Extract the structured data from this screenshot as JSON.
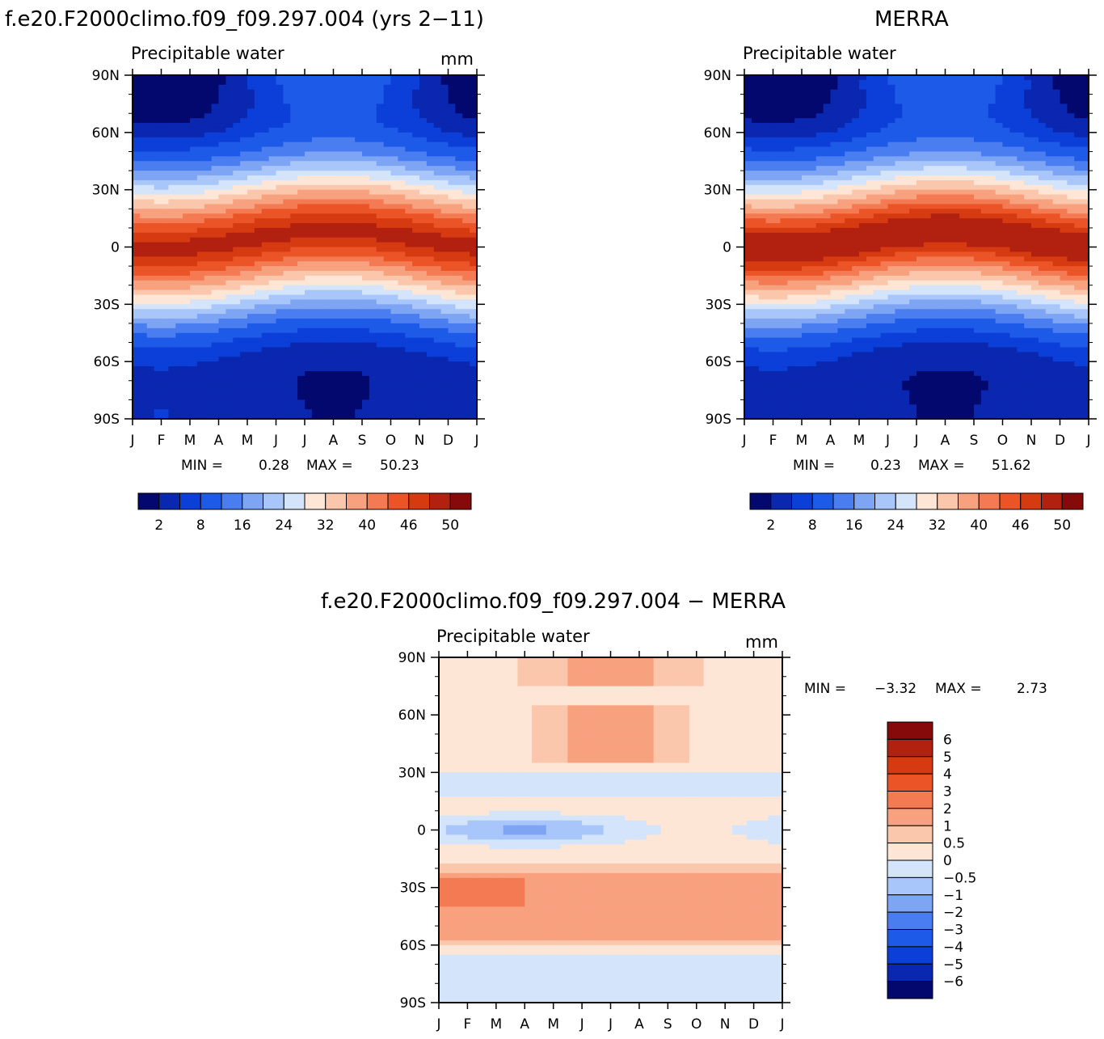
{
  "chart_data": [
    {
      "type": "heatmap",
      "title": "f.e20.F2000climo.f09_f09.297.004 (yrs 2−11)",
      "subtitle": "Precipitable water",
      "units": "mm",
      "x_ticks": [
        "J",
        "F",
        "M",
        "A",
        "M",
        "J",
        "J",
        "A",
        "S",
        "O",
        "N",
        "D",
        "J"
      ],
      "y_ticks": [
        "90N",
        "60N",
        "30N",
        "0",
        "30S",
        "60S",
        "90S"
      ],
      "minmax": {
        "min_label": "MIN =",
        "min": "0.28",
        "max_label": "MAX =",
        "max": "50.23"
      },
      "colorbar": {
        "labels": [
          "2",
          "8",
          "16",
          "24",
          "32",
          "40",
          "46",
          "50"
        ],
        "colors": [
          "#02086e",
          "#0a27b0",
          "#0b3fd8",
          "#1e5ae8",
          "#4a7ef0",
          "#7ea4f4",
          "#a9c6fa",
          "#d3e4fb",
          "#fde6d6",
          "#fbc7ac",
          "#f8a17f",
          "#f37a52",
          "#ea5426",
          "#d63a11",
          "#b22010",
          "#850a09"
        ]
      },
      "climatology": {
        "peak": 50.23,
        "peak_month": 8,
        "peak_lat": 10,
        "trough": 0.28
      }
    },
    {
      "type": "heatmap",
      "title": "MERRA",
      "subtitle": "Precipitable water",
      "units": "",
      "x_ticks": [
        "J",
        "F",
        "M",
        "A",
        "M",
        "J",
        "J",
        "A",
        "S",
        "O",
        "N",
        "D",
        "J"
      ],
      "y_ticks": [
        "90N",
        "60N",
        "30N",
        "0",
        "30S",
        "60S",
        "90S"
      ],
      "minmax": {
        "min_label": "MIN =",
        "min": "0.23",
        "max_label": "MAX =",
        "max": "51.62"
      },
      "colorbar": {
        "labels": [
          "2",
          "8",
          "16",
          "24",
          "32",
          "40",
          "46",
          "50"
        ],
        "colors": [
          "#02086e",
          "#0a27b0",
          "#0b3fd8",
          "#1e5ae8",
          "#4a7ef0",
          "#7ea4f4",
          "#a9c6fa",
          "#d3e4fb",
          "#fde6d6",
          "#fbc7ac",
          "#f8a17f",
          "#f37a52",
          "#ea5426",
          "#d63a11",
          "#b22010",
          "#850a09"
        ]
      },
      "climatology": {
        "peak": 51.62,
        "peak_month": 8,
        "peak_lat": 9,
        "trough": 0.23
      }
    },
    {
      "type": "heatmap",
      "title": "f.e20.F2000climo.f09_f09.297.004 − MERRA",
      "subtitle": "Precipitable water",
      "units": "mm",
      "x_ticks": [
        "J",
        "F",
        "M",
        "A",
        "M",
        "J",
        "J",
        "A",
        "S",
        "O",
        "N",
        "D",
        "J"
      ],
      "y_ticks": [
        "90N",
        "60N",
        "30N",
        "0",
        "30S",
        "60S",
        "90S"
      ],
      "minmax": {
        "min_label": "MIN =",
        "min": "−3.32",
        "max_label": "MAX =",
        "max": "2.73"
      },
      "colorbar": {
        "labels": [
          "6",
          "5",
          "4",
          "3",
          "2",
          "1",
          "0.5",
          "0",
          "−0.5",
          "−1",
          "−2",
          "−3",
          "−4",
          "−5",
          "−6"
        ],
        "colors": [
          "#850a09",
          "#b22010",
          "#d63a11",
          "#ea5426",
          "#f37a52",
          "#f8a17f",
          "#fbc7ac",
          "#fde6d6",
          "#d3e4fb",
          "#a9c6fa",
          "#7ea4f4",
          "#4a7ef0",
          "#1e5ae8",
          "#0b3fd8",
          "#0a27b0",
          "#02086e"
        ]
      }
    }
  ]
}
